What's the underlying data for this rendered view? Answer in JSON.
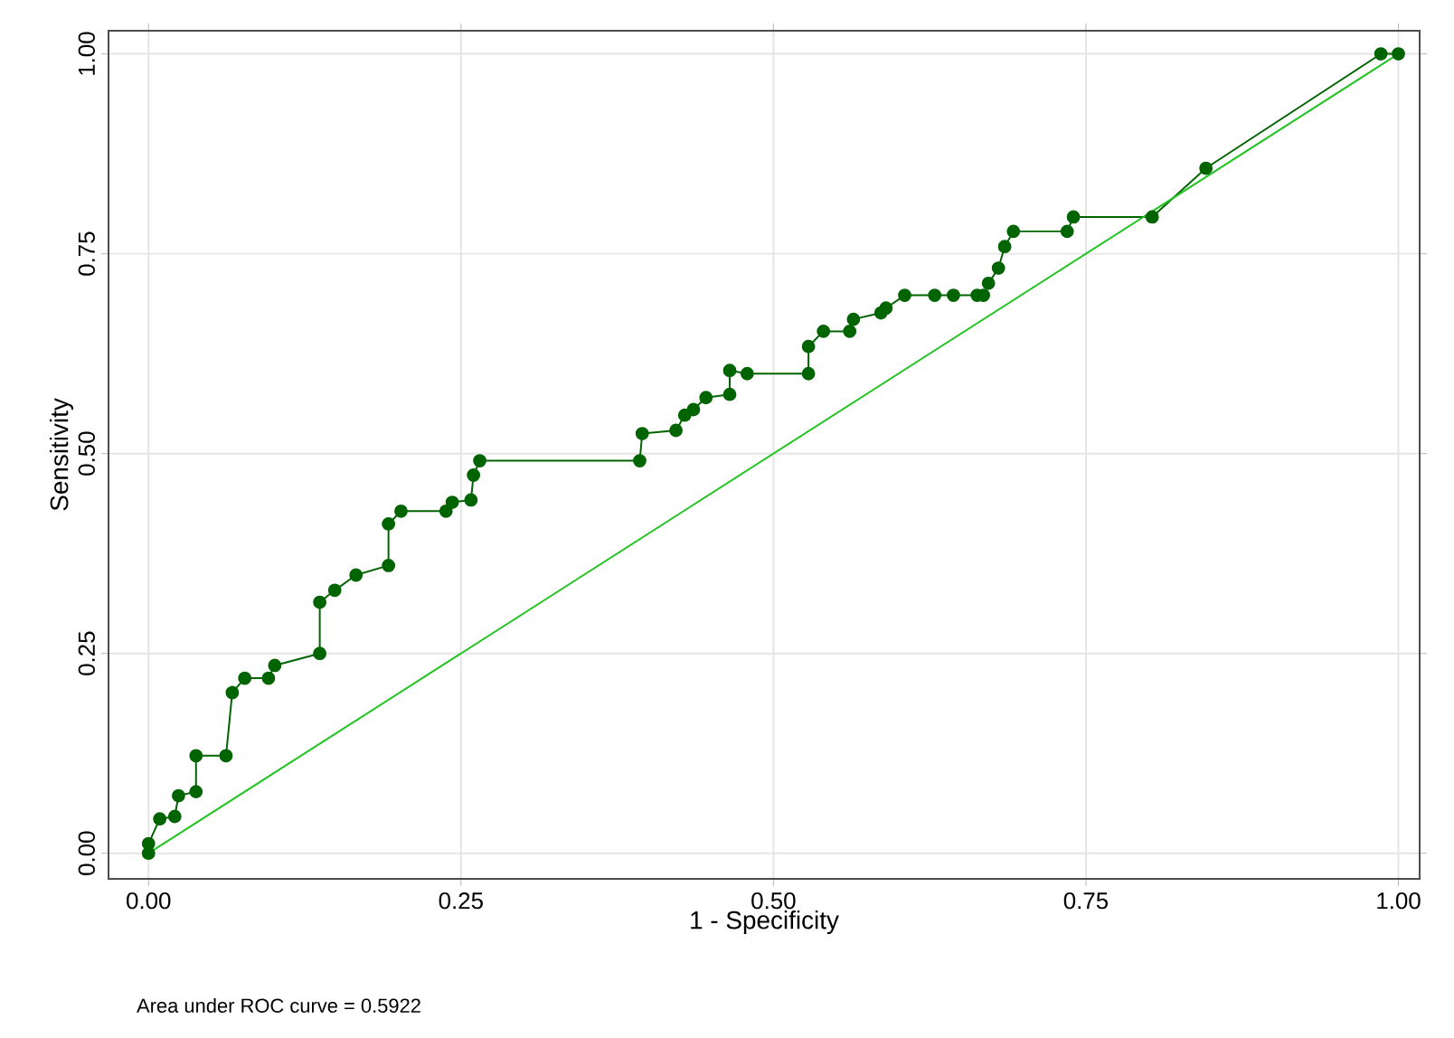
{
  "chart_data": {
    "type": "line",
    "xlabel": "1 - Specificity",
    "ylabel": "Sensitivity",
    "annotations": [
      "Area under ROC curve = 0.5922"
    ],
    "xlim": [
      -0.032,
      1.017
    ],
    "ylim": [
      -0.032,
      1.029
    ],
    "xticks": [
      {
        "value": 0,
        "label": "0.00"
      },
      {
        "value": 0.25,
        "label": "0.25"
      },
      {
        "value": 0.5,
        "label": "0.50"
      },
      {
        "value": 0.75,
        "label": "0.75"
      },
      {
        "value": 1,
        "label": "1.00"
      }
    ],
    "yticks": [
      {
        "value": 0,
        "label": "0.00"
      },
      {
        "value": 0.25,
        "label": "0.25"
      },
      {
        "value": 0.5,
        "label": "0.50"
      },
      {
        "value": 0.75,
        "label": "0.75"
      },
      {
        "value": 1,
        "label": "1.00"
      }
    ],
    "grid": true,
    "series": [
      {
        "color": "#006400",
        "marker": "circle",
        "x": [
          0,
          0,
          0.009,
          0.021,
          0.024,
          0.038,
          0.038,
          0.062,
          0.067,
          0.077,
          0.096,
          0.101,
          0.137,
          0.137,
          0.149,
          0.166,
          0.192,
          0.192,
          0.202,
          0.238,
          0.243,
          0.258,
          0.26,
          0.265,
          0.393,
          0.395,
          0.422,
          0.429,
          0.436,
          0.446,
          0.465,
          0.465,
          0.479,
          0.528,
          0.528,
          0.54,
          0.561,
          0.564,
          0.586,
          0.59,
          0.605,
          0.629,
          0.644,
          0.663,
          0.668,
          0.672,
          0.68,
          0.685,
          0.692,
          0.735,
          0.74,
          0.803,
          0.846,
          0.986,
          1.0
        ],
        "values": [
          0,
          0.012,
          0.043,
          0.046,
          0.072,
          0.077,
          0.122,
          0.122,
          0.201,
          0.219,
          0.219,
          0.235,
          0.25,
          0.314,
          0.329,
          0.348,
          0.36,
          0.412,
          0.428,
          0.428,
          0.439,
          0.442,
          0.473,
          0.491,
          0.491,
          0.525,
          0.529,
          0.548,
          0.555,
          0.57,
          0.574,
          0.604,
          0.6,
          0.6,
          0.634,
          0.653,
          0.653,
          0.668,
          0.676,
          0.682,
          0.698,
          0.698,
          0.698,
          0.698,
          0.698,
          0.713,
          0.732,
          0.759,
          0.778,
          0.778,
          0.796,
          0.796,
          0.857,
          1.0,
          1.0
        ]
      },
      {
        "color": "#22c322",
        "marker": "none",
        "x": [
          0,
          1
        ],
        "values": [
          0,
          1
        ]
      }
    ]
  }
}
